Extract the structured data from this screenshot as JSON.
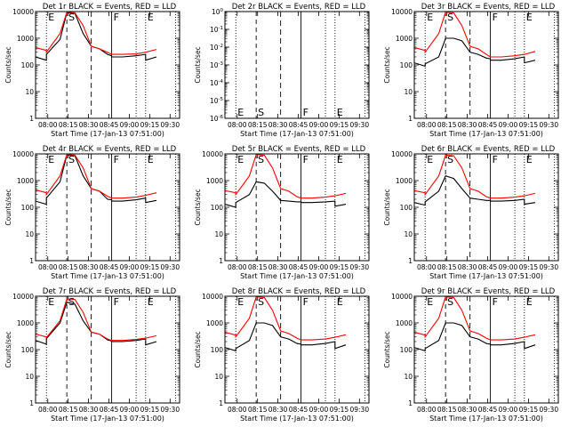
{
  "figure": {
    "background": "#ffffff",
    "events_color": "#000000",
    "lld_color": "#ff0000"
  },
  "chart_data": [
    {
      "type": "line",
      "title": "Det 1r BLACK = Events, RED = LLD",
      "xlabel": "Start Time (17-Jan-13 07:51:00)",
      "ylabel": "Counts/sec",
      "y_scale": "log",
      "ylim": [
        1,
        10000
      ],
      "y_ticks": [
        "1",
        "10",
        "100",
        "1000",
        "10000"
      ],
      "x_ticks": [
        "08:00",
        "08:15",
        "08:30",
        "08:45",
        "09:00",
        "09:15",
        "09:30"
      ],
      "grid": false,
      "markers": [
        "E",
        "S",
        "F",
        "E"
      ],
      "series": [
        {
          "name": "BLACK = Events",
          "color": "#000000",
          "x": [
            "07:51",
            "07:59",
            "07:59",
            "08:09",
            "08:14",
            "08:20",
            "08:26",
            "08:32",
            "08:38",
            "08:44",
            "08:47",
            "08:47",
            "08:55",
            "09:05",
            "09:12",
            "09:12",
            "09:20"
          ],
          "values": [
            200,
            150,
            250,
            900,
            9000,
            8500,
            1500,
            500,
            400,
            250,
            220,
            200,
            200,
            220,
            250,
            150,
            200
          ]
        },
        {
          "name": "RED = LLD",
          "color": "#ff0000",
          "x": [
            "07:51",
            "07:59",
            "07:59",
            "08:09",
            "08:14",
            "08:20",
            "08:26",
            "08:32",
            "08:38",
            "08:44",
            "08:47",
            "08:55",
            "09:05",
            "09:12",
            "09:20"
          ],
          "values": [
            450,
            350,
            300,
            1500,
            9500,
            9000,
            3000,
            500,
            400,
            300,
            250,
            250,
            260,
            300,
            380
          ]
        }
      ]
    },
    {
      "type": "line",
      "title": "Det 2r BLACK = Events, RED = LLD",
      "xlabel": "Start Time (17-Jan-13 07:51:00)",
      "ylabel": "Counts/sec",
      "y_scale": "log",
      "ylim": [
        1e-06,
        1
      ],
      "y_ticks": [
        "10-6",
        "10-5",
        "10-4",
        "10-3",
        "10-2",
        "10-1",
        "100"
      ],
      "x_ticks": [
        "08:00",
        "08:15",
        "08:30",
        "08:45",
        "09:00",
        "09:15",
        "09:30"
      ],
      "grid": false,
      "markers": [
        "E",
        "S",
        "F",
        "E"
      ],
      "series": []
    },
    {
      "type": "line",
      "title": "Det 3r BLACK = Events, RED = LLD",
      "xlabel": "Start Time (17-Jan-13 07:51:00)",
      "ylabel": "Counts/sec",
      "y_scale": "log",
      "ylim": [
        1,
        10000
      ],
      "y_ticks": [
        "1",
        "10",
        "100",
        "1000",
        "10000"
      ],
      "x_ticks": [
        "08:00",
        "08:15",
        "08:30",
        "08:45",
        "09:00",
        "09:15",
        "09:30"
      ],
      "grid": false,
      "markers": [
        "E",
        "S",
        "F",
        "E"
      ],
      "series": [
        {
          "name": "BLACK = Events",
          "color": "#000000",
          "x": [
            "07:51",
            "07:59",
            "07:59",
            "08:09",
            "08:14",
            "08:20",
            "08:26",
            "08:32",
            "08:38",
            "08:44",
            "08:47",
            "08:47",
            "08:55",
            "09:05",
            "09:12",
            "09:12",
            "09:20"
          ],
          "values": [
            120,
            90,
            110,
            200,
            1000,
            1000,
            800,
            300,
            250,
            180,
            170,
            150,
            150,
            170,
            200,
            120,
            150
          ]
        },
        {
          "name": "RED = LLD",
          "color": "#ff0000",
          "x": [
            "07:51",
            "07:59",
            "07:59",
            "08:09",
            "08:14",
            "08:20",
            "08:26",
            "08:32",
            "08:38",
            "08:44",
            "08:47",
            "08:55",
            "09:05",
            "09:12",
            "09:20"
          ],
          "values": [
            450,
            350,
            300,
            1500,
            9500,
            9000,
            3000,
            500,
            400,
            250,
            200,
            200,
            220,
            250,
            320
          ]
        }
      ]
    },
    {
      "type": "line",
      "title": "Det 4r BLACK = Events, RED = LLD",
      "xlabel": "Start Time (17-Jan-13 07:51:00)",
      "ylabel": "Counts/sec",
      "y_scale": "log",
      "ylim": [
        1,
        10000
      ],
      "y_ticks": [
        "1",
        "10",
        "100",
        "1000",
        "10000"
      ],
      "x_ticks": [
        "08:00",
        "08:15",
        "08:30",
        "08:45",
        "09:00",
        "09:15",
        "09:30"
      ],
      "grid": false,
      "markers": [
        "E",
        "S",
        "F",
        "E"
      ],
      "series": [
        {
          "name": "BLACK = Events",
          "color": "#000000",
          "x": [
            "07:51",
            "07:59",
            "07:59",
            "08:09",
            "08:14",
            "08:20",
            "08:26",
            "08:32",
            "08:38",
            "08:44",
            "08:47",
            "08:47",
            "08:55",
            "09:05",
            "09:12",
            "09:12",
            "09:20"
          ],
          "values": [
            170,
            130,
            220,
            900,
            9000,
            8500,
            1500,
            500,
            400,
            200,
            190,
            170,
            170,
            190,
            220,
            150,
            180
          ]
        },
        {
          "name": "RED = LLD",
          "color": "#ff0000",
          "x": [
            "07:51",
            "07:59",
            "07:59",
            "08:09",
            "08:14",
            "08:20",
            "08:26",
            "08:32",
            "08:38",
            "08:44",
            "08:47",
            "08:55",
            "09:05",
            "09:12",
            "09:20"
          ],
          "values": [
            450,
            350,
            300,
            1500,
            9500,
            9000,
            3000,
            500,
            400,
            260,
            220,
            220,
            240,
            280,
            350
          ]
        }
      ]
    },
    {
      "type": "line",
      "title": "Det 5r BLACK = Events, RED = LLD",
      "xlabel": "Start Time (17-Jan-13 07:51:00)",
      "ylabel": "Counts/sec",
      "y_scale": "log",
      "ylim": [
        1,
        10000
      ],
      "y_ticks": [
        "1",
        "10",
        "100",
        "1000",
        "10000"
      ],
      "x_ticks": [
        "08:00",
        "08:15",
        "08:30",
        "08:45",
        "09:00",
        "09:15",
        "09:30"
      ],
      "grid": false,
      "markers": [
        "E",
        "S",
        "F",
        "E"
      ],
      "series": [
        {
          "name": "BLACK = Events",
          "color": "#000000",
          "x": [
            "07:51",
            "07:59",
            "07:59",
            "08:09",
            "08:14",
            "08:20",
            "08:26",
            "08:32",
            "08:38",
            "08:44",
            "08:47",
            "08:47",
            "08:55",
            "09:05",
            "09:12",
            "09:12",
            "09:20"
          ],
          "values": [
            130,
            100,
            150,
            300,
            900,
            800,
            400,
            180,
            170,
            160,
            160,
            150,
            150,
            160,
            170,
            110,
            130
          ]
        },
        {
          "name": "RED = LLD",
          "color": "#ff0000",
          "x": [
            "07:51",
            "07:59",
            "07:59",
            "08:09",
            "08:14",
            "08:20",
            "08:26",
            "08:32",
            "08:38",
            "08:44",
            "08:47",
            "08:55",
            "09:05",
            "09:12",
            "09:20"
          ],
          "values": [
            420,
            350,
            300,
            1500,
            9500,
            9000,
            3000,
            500,
            400,
            250,
            220,
            220,
            240,
            270,
            330
          ]
        }
      ]
    },
    {
      "type": "line",
      "title": "Det 6r BLACK = Events, RED = LLD",
      "xlabel": "Start Time (17-Jan-13 07:51:00)",
      "ylabel": "Counts/sec",
      "y_scale": "log",
      "ylim": [
        1,
        10000
      ],
      "y_ticks": [
        "1",
        "10",
        "100",
        "1000",
        "10000"
      ],
      "x_ticks": [
        "08:00",
        "08:15",
        "08:30",
        "08:45",
        "09:00",
        "09:15",
        "09:30"
      ],
      "grid": false,
      "markers": [
        "E",
        "S",
        "F",
        "E"
      ],
      "series": [
        {
          "name": "BLACK = Events",
          "color": "#000000",
          "x": [
            "07:51",
            "07:59",
            "07:59",
            "08:09",
            "08:14",
            "08:20",
            "08:26",
            "08:32",
            "08:38",
            "08:44",
            "08:47",
            "08:47",
            "08:55",
            "09:05",
            "09:12",
            "09:12",
            "09:20"
          ],
          "values": [
            150,
            120,
            160,
            400,
            1500,
            1200,
            500,
            220,
            200,
            180,
            180,
            170,
            170,
            180,
            200,
            130,
            150
          ]
        },
        {
          "name": "RED = LLD",
          "color": "#ff0000",
          "x": [
            "07:51",
            "07:59",
            "07:59",
            "08:09",
            "08:14",
            "08:20",
            "08:26",
            "08:32",
            "08:38",
            "08:44",
            "08:47",
            "08:55",
            "09:05",
            "09:12",
            "09:20"
          ],
          "values": [
            420,
            350,
            300,
            1500,
            9000,
            8500,
            3000,
            500,
            400,
            250,
            220,
            220,
            240,
            270,
            330
          ]
        }
      ]
    },
    {
      "type": "line",
      "title": "Det 7r BLACK = Events, RED = LLD",
      "xlabel": "Start Time (17-Jan-13 07:51:00)",
      "ylabel": "Counts/sec",
      "y_scale": "log",
      "ylim": [
        1,
        10000
      ],
      "y_ticks": [
        "1",
        "10",
        "100",
        "1000",
        "10000"
      ],
      "x_ticks": [
        "08:00",
        "08:15",
        "08:30",
        "08:45",
        "09:00",
        "09:15",
        "09:30"
      ],
      "grid": false,
      "markers": [
        "E",
        "S",
        "F",
        "E"
      ],
      "series": [
        {
          "name": "BLACK = Events",
          "color": "#000000",
          "x": [
            "07:51",
            "07:59",
            "07:59",
            "08:09",
            "08:14",
            "08:20",
            "08:26",
            "08:32",
            "08:38",
            "08:44",
            "08:47",
            "08:47",
            "08:55",
            "09:05",
            "09:12",
            "09:12",
            "09:20"
          ],
          "values": [
            220,
            160,
            260,
            1000,
            6000,
            5000,
            1200,
            450,
            380,
            230,
            210,
            200,
            200,
            220,
            250,
            150,
            200
          ]
        },
        {
          "name": "RED = LLD",
          "color": "#ff0000",
          "x": [
            "07:51",
            "07:59",
            "07:59",
            "08:09",
            "08:14",
            "08:20",
            "08:26",
            "08:32",
            "08:38",
            "08:44",
            "08:47",
            "08:55",
            "09:05",
            "09:12",
            "09:20"
          ],
          "values": [
            380,
            300,
            280,
            1200,
            8000,
            7500,
            2500,
            450,
            380,
            250,
            220,
            220,
            240,
            270,
            330
          ]
        }
      ]
    },
    {
      "type": "line",
      "title": "Det 8r BLACK = Events, RED = LLD",
      "xlabel": "Start Time (17-Jan-13 07:51:00)",
      "ylabel": "Counts/sec",
      "y_scale": "log",
      "ylim": [
        1,
        10000
      ],
      "y_ticks": [
        "1",
        "10",
        "100",
        "1000",
        "10000"
      ],
      "x_ticks": [
        "08:00",
        "08:15",
        "08:30",
        "08:45",
        "09:00",
        "09:15",
        "09:30"
      ],
      "grid": false,
      "markers": [
        "E",
        "S",
        "F",
        "E"
      ],
      "series": [
        {
          "name": "BLACK = Events",
          "color": "#000000",
          "x": [
            "07:51",
            "07:59",
            "07:59",
            "08:09",
            "08:14",
            "08:20",
            "08:26",
            "08:32",
            "08:38",
            "08:44",
            "08:47",
            "08:47",
            "08:55",
            "09:05",
            "09:12",
            "09:12",
            "09:20"
          ],
          "values": [
            120,
            90,
            110,
            220,
            1000,
            1000,
            800,
            300,
            250,
            170,
            160,
            150,
            150,
            170,
            200,
            110,
            150
          ]
        },
        {
          "name": "RED = LLD",
          "color": "#ff0000",
          "x": [
            "07:51",
            "07:59",
            "07:59",
            "08:09",
            "08:14",
            "08:20",
            "08:26",
            "08:32",
            "08:38",
            "08:44",
            "08:47",
            "08:55",
            "09:05",
            "09:12",
            "09:20"
          ],
          "values": [
            450,
            350,
            300,
            1500,
            9500,
            9000,
            3000,
            500,
            400,
            270,
            230,
            230,
            250,
            290,
            360
          ]
        }
      ]
    },
    {
      "type": "line",
      "title": "Det 9r BLACK = Events, RED = LLD",
      "xlabel": "Start Time (17-Jan-13 07:51:00)",
      "ylabel": "Counts/sec",
      "y_scale": "log",
      "ylim": [
        1,
        10000
      ],
      "y_ticks": [
        "1",
        "10",
        "100",
        "1000",
        "10000"
      ],
      "x_ticks": [
        "08:00",
        "08:15",
        "08:30",
        "08:45",
        "09:00",
        "09:15",
        "09:30"
      ],
      "grid": false,
      "markers": [
        "E",
        "S",
        "F",
        "E"
      ],
      "series": [
        {
          "name": "BLACK = Events",
          "color": "#000000",
          "x": [
            "07:51",
            "07:59",
            "07:59",
            "08:09",
            "08:14",
            "08:20",
            "08:26",
            "08:32",
            "08:38",
            "08:44",
            "08:47",
            "08:47",
            "08:55",
            "09:05",
            "09:12",
            "09:12",
            "09:20"
          ],
          "values": [
            120,
            90,
            110,
            220,
            1000,
            1000,
            800,
            300,
            250,
            170,
            160,
            150,
            150,
            170,
            200,
            110,
            150
          ]
        },
        {
          "name": "RED = LLD",
          "color": "#ff0000",
          "x": [
            "07:51",
            "07:59",
            "07:59",
            "08:09",
            "08:14",
            "08:20",
            "08:26",
            "08:32",
            "08:38",
            "08:44",
            "08:47",
            "08:55",
            "09:05",
            "09:12",
            "09:20"
          ],
          "values": [
            450,
            350,
            300,
            1500,
            9500,
            9000,
            3000,
            500,
            400,
            270,
            230,
            230,
            250,
            290,
            360
          ]
        }
      ]
    }
  ]
}
